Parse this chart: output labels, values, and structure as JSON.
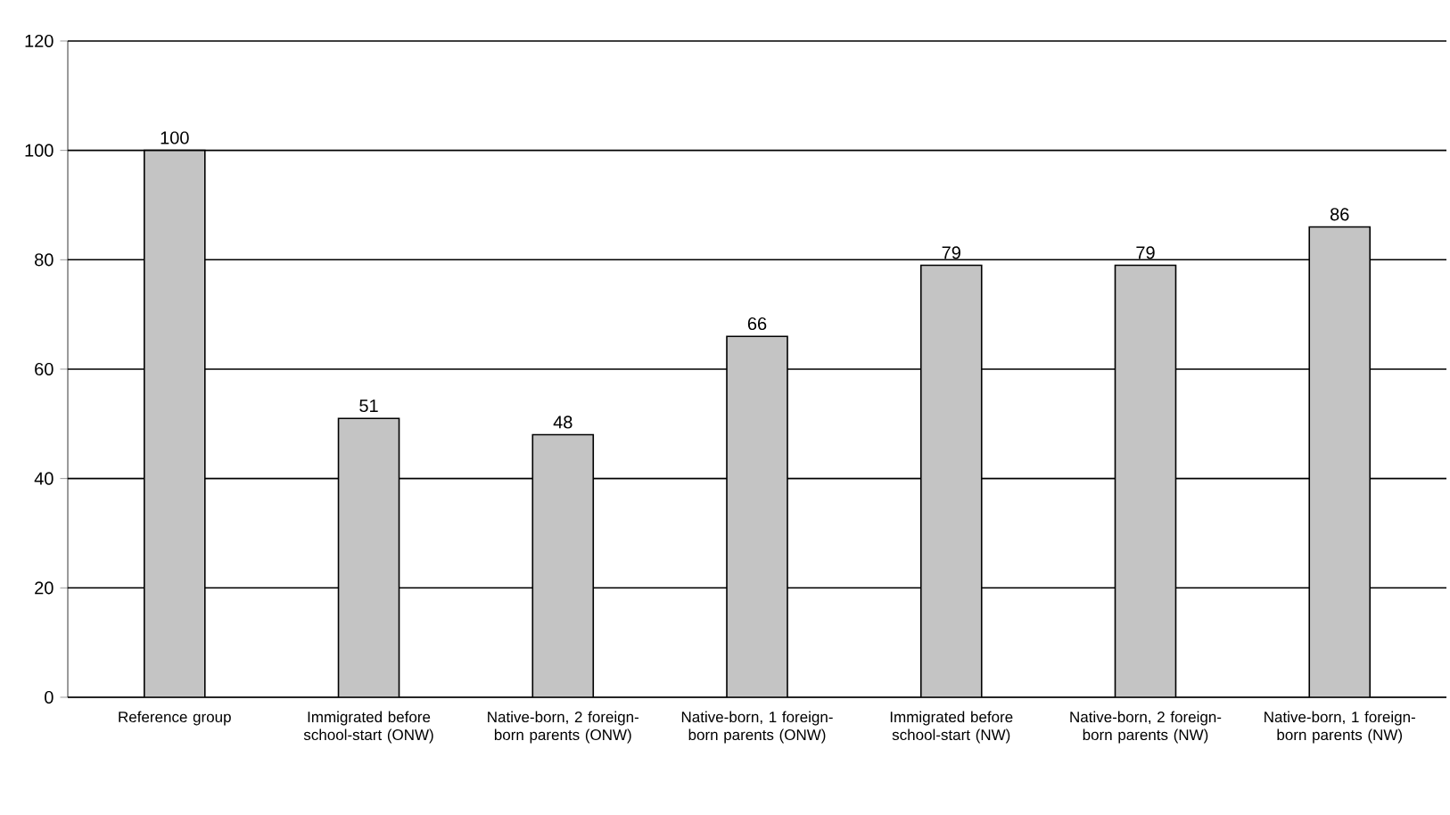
{
  "chart_data": {
    "type": "bar",
    "categories": [
      "Reference group",
      "Immigrated before school-start (ONW)",
      "Native-born, 2 foreign-born parents (ONW)",
      "Native-born, 1 foreign-born parents (ONW)",
      "Immigrated before school-start (NW)",
      "Native-born, 2 foreign-born parents (NW)",
      "Native-born, 1 foreign-born parents (NW)"
    ],
    "values": [
      100,
      51,
      48,
      66,
      79,
      79,
      86
    ],
    "color": "#c4c4c4",
    "ylim": [
      0,
      120
    ],
    "yticks": [
      0,
      20,
      40,
      60,
      80,
      100,
      120
    ],
    "grid": "y",
    "data_labels": true
  }
}
